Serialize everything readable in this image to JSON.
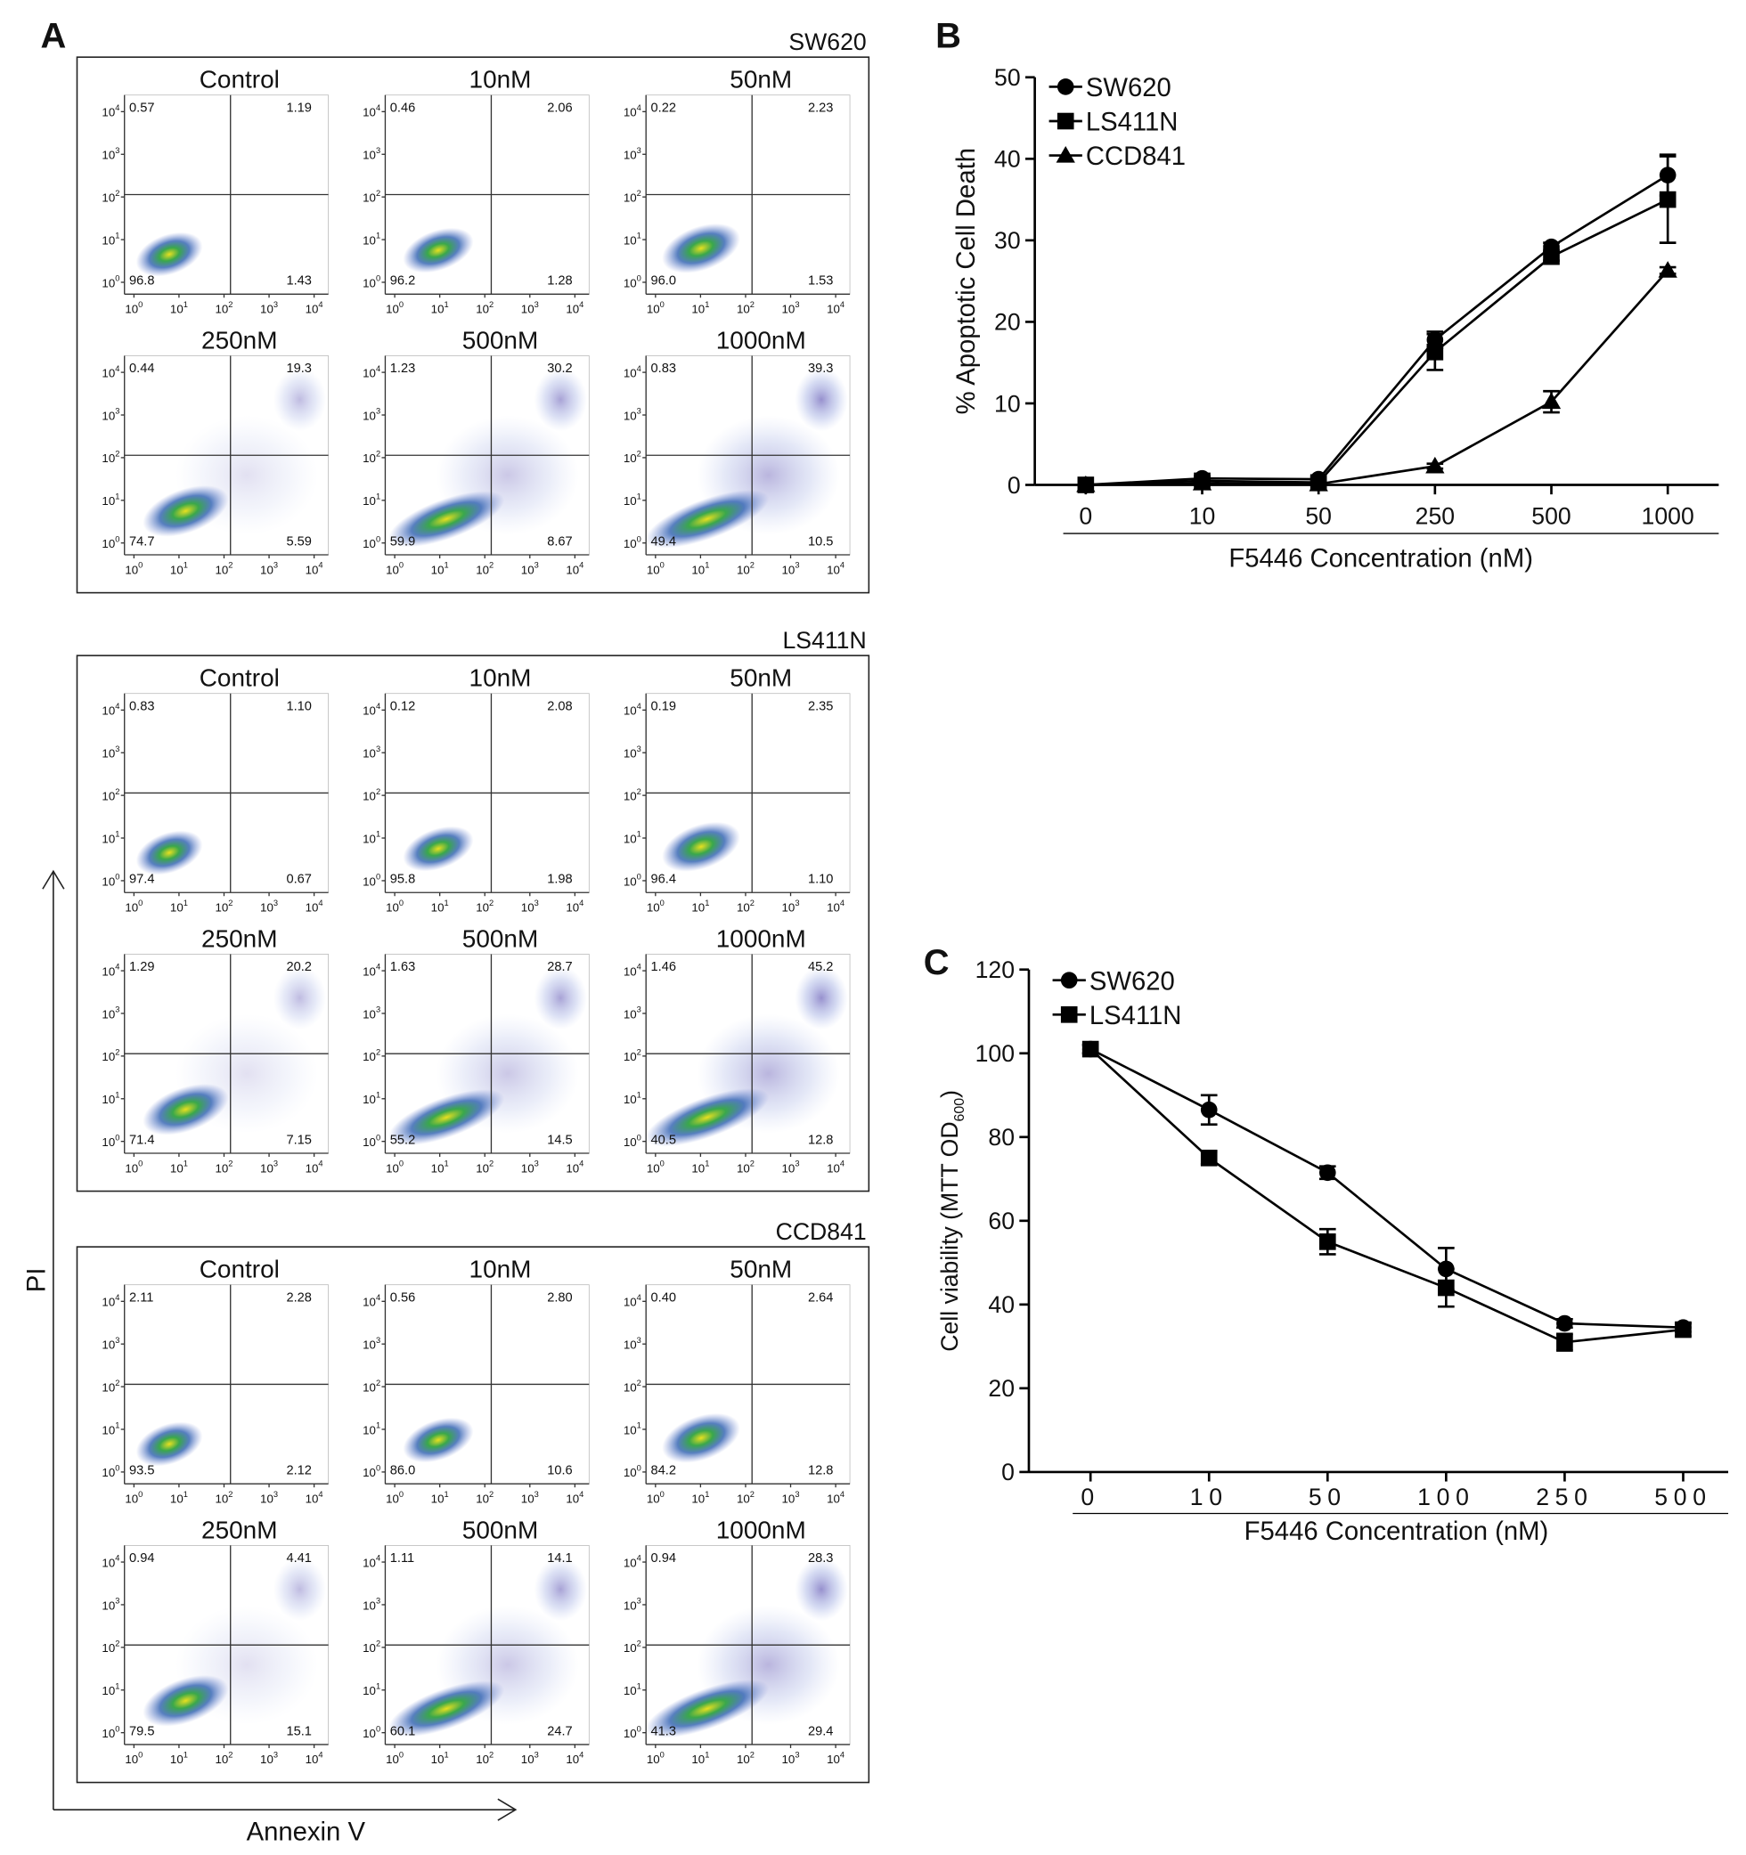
{
  "panel_a": {
    "label": "A",
    "y_axis_label": "PI",
    "x_axis_label": "Annexin V",
    "conditions": [
      "Control",
      "10nM",
      "50nM",
      "250nM",
      "500nM",
      "1000nM"
    ],
    "tick_base": "10",
    "tick_exponents": [
      "0",
      "1",
      "2",
      "3",
      "4"
    ],
    "groups": [
      {
        "name": "SW620",
        "quadrants": [
          [
            "0.57",
            "1.19",
            "96.8",
            "1.43"
          ],
          [
            "0.46",
            "2.06",
            "96.2",
            "1.28"
          ],
          [
            "0.22",
            "2.23",
            "96.0",
            "1.53"
          ],
          [
            "0.44",
            "19.3",
            "74.7",
            "5.59"
          ],
          [
            "1.23",
            "30.2",
            "59.9",
            "8.67"
          ],
          [
            "0.83",
            "39.3",
            "49.4",
            "10.5"
          ]
        ]
      },
      {
        "name": "LS411N",
        "quadrants": [
          [
            "0.83",
            "1.10",
            "97.4",
            "0.67"
          ],
          [
            "0.12",
            "2.08",
            "95.8",
            "1.98"
          ],
          [
            "0.19",
            "2.35",
            "96.4",
            "1.10"
          ],
          [
            "1.29",
            "20.2",
            "71.4",
            "7.15"
          ],
          [
            "1.63",
            "28.7",
            "55.2",
            "14.5"
          ],
          [
            "1.46",
            "45.2",
            "40.5",
            "12.8"
          ]
        ]
      },
      {
        "name": "CCD841",
        "quadrants": [
          [
            "2.11",
            "2.28",
            "93.5",
            "2.12"
          ],
          [
            "0.56",
            "2.80",
            "86.0",
            "10.6"
          ],
          [
            "0.40",
            "2.64",
            "84.2",
            "12.8"
          ],
          [
            "0.94",
            "4.41",
            "79.5",
            "15.1"
          ],
          [
            "1.11",
            "14.1",
            "60.1",
            "24.7"
          ],
          [
            "0.94",
            "28.3",
            "41.3",
            "29.4"
          ]
        ]
      }
    ]
  },
  "chart_data": [
    {
      "type": "line",
      "panel_label": "B",
      "ylabel": "% Apoptotic Cell Death",
      "xlabel": "F5446 Concentration (nM)",
      "categories": [
        "0",
        "10",
        "50",
        "250",
        "500",
        "1000"
      ],
      "ylim": [
        0,
        50
      ],
      "yticks": [
        0,
        10,
        20,
        30,
        40,
        50
      ],
      "series": [
        {
          "name": "SW620",
          "color": "#000000",
          "marker": "circle",
          "values": [
            0,
            0.8,
            0.7,
            17.8,
            29.2,
            38
          ],
          "errors": [
            0,
            0.3,
            0.3,
            1,
            0.5,
            2.5
          ]
        },
        {
          "name": "LS411N",
          "color": "#000000",
          "marker": "square",
          "values": [
            0,
            0.5,
            0.3,
            16.3,
            28,
            35
          ],
          "errors": [
            0,
            0.5,
            0.3,
            2.2,
            0.5,
            5.3
          ]
        },
        {
          "name": "CCD841",
          "color": "#000000",
          "marker": "triangle",
          "values": [
            0,
            0.2,
            0.1,
            2.3,
            10.2,
            26.3
          ],
          "errors": [
            0,
            0.2,
            0.1,
            0.3,
            1.3,
            0.4
          ]
        }
      ]
    },
    {
      "type": "line",
      "panel_label": "C",
      "ylabel": {
        "text": "Cell viability  (MTT OD",
        "subscript": "600",
        "suffix": ")"
      },
      "xlabel": "F5446 Concentration (nM)",
      "categories": [
        "0",
        "10",
        "50",
        "100",
        "250",
        "500"
      ],
      "ylim": [
        0,
        120
      ],
      "yticks": [
        0,
        20,
        40,
        60,
        80,
        100,
        120
      ],
      "series": [
        {
          "name": "SW620",
          "color": "#000000",
          "marker": "circle",
          "values": [
            101,
            86.5,
            71.5,
            48.5,
            35.5,
            34.5
          ],
          "errors": [
            1,
            3.5,
            1.5,
            5,
            1,
            1
          ]
        },
        {
          "name": "LS411N",
          "color": "#000000",
          "marker": "square",
          "values": [
            101,
            75,
            55,
            44,
            31,
            34
          ],
          "errors": [
            1,
            1.5,
            3,
            4.5,
            2,
            1.5
          ]
        }
      ]
    }
  ]
}
